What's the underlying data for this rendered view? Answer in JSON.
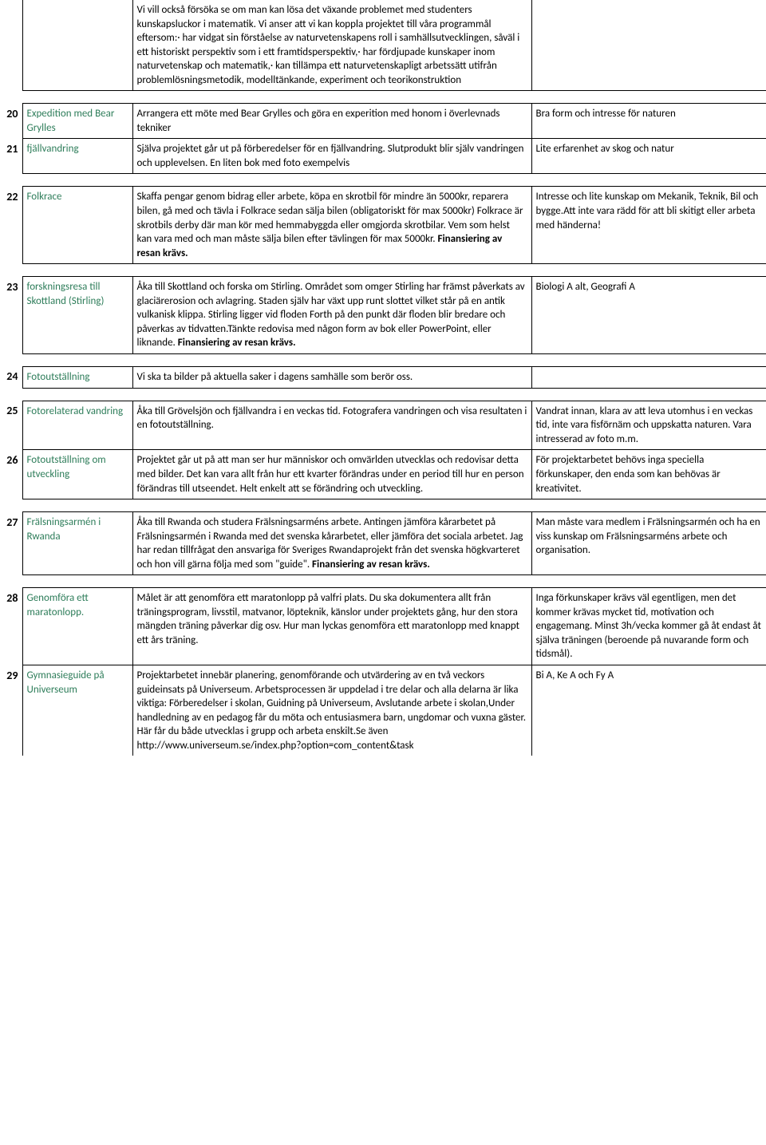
{
  "colors": {
    "text": "#000000",
    "link": "#2e7d5a",
    "border": "#000000",
    "bg": "#ffffff"
  },
  "font": {
    "family": "Calibri",
    "size_body": 13,
    "size_num": 14
  },
  "rows": [
    {
      "num": "",
      "title": "",
      "desc": "Vi vill också försöka se om man kan lösa det växande problemet med studenters kunskapsluckor i matematik. Vi anser att vi kan koppla projektet till våra programmål eftersom:· har vidgat sin förståelse av naturvetenskapens roll i samhällsutvecklingen, såväl i ett historiskt perspektiv som i ett framtidsperspektiv,· har fördjupade kunskaper inom naturvetenskap och matematik,· kan tillämpa ett naturvetenskapligt arbetssätt utifrån problemlösningsmetodik, modelltänkande, experiment och teorikonstruktion",
      "req": ""
    },
    {
      "num": "20",
      "title": "Expedition med Bear Grylles",
      "desc": "Arrangera ett möte med Bear Grylles och göra en experition med honom i överlevnads tekniker",
      "req": "Bra form och intresse för naturen"
    },
    {
      "num": "21",
      "title": "fjällvandring",
      "desc": "Själva projektet går ut på förberedelser för en fjällvandring. Slutprodukt blir själv vandringen och upplevelsen. En liten bok med foto exempelvis",
      "req": "Lite erfarenhet av skog och natur"
    },
    {
      "num": "22",
      "title": "Folkrace",
      "desc_html": "Skaffa pengar genom bidrag eller arbete, köpa en skrotbil för mindre än 5000kr, reparera bilen, gå med och tävla i Folkrace sedan sälja bilen (obligatoriskt för max 5000kr) Folkrace är skrotbils derby där man kör med hemmabyggda eller omgjorda skrotbilar. Vem som helst kan vara med och man måste sälja bilen efter tävlingen för max 5000kr. <b>Finansiering av resan krävs.</b>",
      "req": "Intresse och lite kunskap om Mekanik, Teknik, Bil och bygge.Att inte vara rädd för att bli skitigt eller arbeta med händerna!"
    },
    {
      "num": "23",
      "title": "forskningsresa till Skottland (Stirling)",
      "desc_html": "Åka till Skottland och forska om Stirling. Området som omger Stirling har främst påverkats av glaciärerosion och avlagring. Staden själv har växt upp runt slottet vilket står på en antik vulkanisk klippa. Stirling ligger vid floden Forth på den punkt där floden blir bredare och påverkas av tidvatten.Tänkte redovisa med någon form av bok eller PowerPoint, eller liknande. <b>Finansiering av resan krävs.</b>",
      "req": "Biologi A alt, Geografi A"
    },
    {
      "num": "24",
      "title": "Fotoutställning",
      "desc": "Vi ska ta bilder på aktuella saker i dagens samhälle som berör oss.",
      "req": ""
    },
    {
      "num": "25",
      "title": "Fotorelaterad vandring",
      "desc": "Åka till Grövelsjön och fjällvandra i en veckas tid. Fotografera vandringen och visa resultaten i en fotoutställning.",
      "req": "Vandrat innan, klara av att leva utomhus i en veckas tid, inte vara fisförnäm och uppskatta naturen. Vara intresserad av foto m.m."
    },
    {
      "num": "26",
      "title": "Fotoutställning om utveckling",
      "desc": "Projektet går ut på att man ser hur människor och omvärlden utvecklas och redovisar detta med bilder. Det kan vara allt från hur ett kvarter förändras under en period till hur en person förändras till utseendet. Helt enkelt att se förändring och utveckling.",
      "req": "För projektarbetet behövs inga speciella förkunskaper, den enda som kan behövas är kreativitet."
    },
    {
      "num": "27",
      "title": "Frälsningsarmén i Rwanda",
      "desc_html": "Åka till Rwanda och studera Frälsningsarméns arbete. Antingen jämföra kårarbetet på Frälsningsarmén i Rwanda med det svenska kårarbetet, eller jämföra det sociala arbetet. Jag har redan tillfrågat den ansvariga för Sveriges Rwandaprojekt från det svenska högkvarteret och hon vill gärna följa med som \"guide\". <b>Finansiering av resan krävs.</b>",
      "req": "Man måste vara medlem i Frälsningsarmén och ha en viss kunskap om Frälsningsarméns arbete och organisation."
    },
    {
      "num": "28",
      "title": "Genomföra ett maratonlopp.",
      "desc": "Målet är att genomföra ett maratonlopp på valfri plats. Du ska dokumentera allt från träningsprogram, livsstil, matvanor, löpteknik, känslor under projektets gång, hur den stora mängden träning påverkar dig osv. Hur man lyckas genomföra ett maratonlopp med knappt ett års träning.",
      "req": "Inga förkunskaper krävs väl egentligen, men det kommer krävas mycket tid, motivation och engagemang. Minst 3h/vecka kommer gå åt endast åt själva träningen (beroende på nuvarande form och tidsmål)."
    },
    {
      "num": "29",
      "title": "Gymnasieguide på Universeum",
      "desc": "Projektarbetet innebär planering, genomförande och utvärdering av en två veckors guideinsats på Universeum. Arbetsprocessen är uppdelad i tre delar och alla delarna är lika viktiga: Förberedelser i skolan, Guidning på Universeum, Avslutande arbete i skolan,Under handledning av en pedagog får du möta och entusiasmera barn, ungdomar och vuxna gäster. Här får du både utvecklas i grupp och arbeta enskilt.Se även http://www.universeum.se/index.php?option=com_content&task",
      "req": "Bi A, Ke A och Fy A"
    }
  ]
}
